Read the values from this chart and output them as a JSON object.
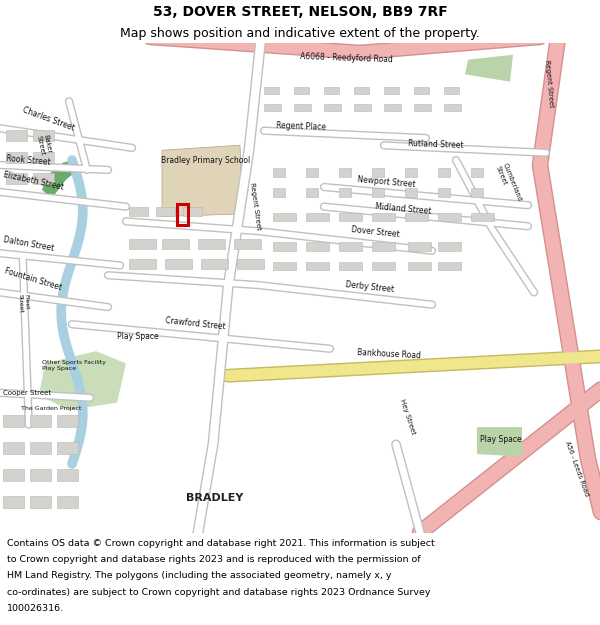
{
  "title_line1": "53, DOVER STREET, NELSON, BB9 7RF",
  "title_line2": "Map shows position and indicative extent of the property.",
  "footer_text": "Contains OS data © Crown copyright and database right 2021. This information is subject to Crown copyright and database rights 2023 and is reproduced with the permission of HM Land Registry. The polygons (including the associated geometry, namely x, y co-ordinates) are subject to Crown copyright and database rights 2023 Ordnance Survey 100026316.",
  "title_fontsize": 10,
  "title2_fontsize": 9,
  "footer_fontsize": 6.8,
  "fig_width": 6.0,
  "fig_height": 6.25,
  "map_bg_color": "#f0eeeb",
  "header_bg": "#ffffff",
  "footer_bg": "#ffffff",
  "property_marker_color": "#cc0000",
  "road_highlight_pink": "#f2b3b3",
  "road_highlight_yellow": "#f0e68c",
  "green_area_color": "#b8d4a8",
  "dark_green_color": "#6aaa6a",
  "water_color": "#a8d0e0",
  "school_color": "#e0d4b8",
  "light_green2": "#c8ddb8",
  "white_road": "#ffffff",
  "gray_bld": "#d4d2cf",
  "border_bld": "#b8b6b2"
}
